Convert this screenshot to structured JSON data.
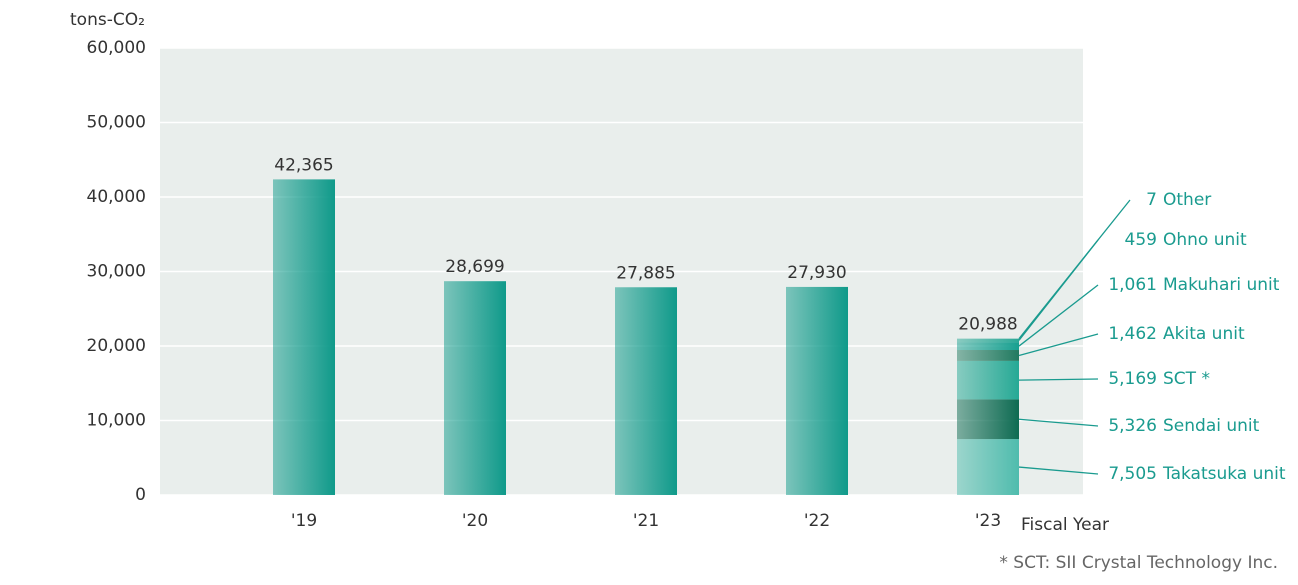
{
  "chart_data": {
    "type": "bar",
    "y_axis_label": "tons-CO₂",
    "x_axis_label": "Fiscal Year",
    "footnote": "* SCT: SII Crystal Technology Inc.",
    "categories": [
      "'19",
      "'20",
      "'21",
      "'22",
      "'23"
    ],
    "values": [
      42365,
      28699,
      27885,
      27930,
      20988
    ],
    "value_labels": [
      "42,365",
      "28,699",
      "27,885",
      "27,930",
      "20,988"
    ],
    "color": "#0f9a8a",
    "series": [
      {
        "name": "Takatsuka unit",
        "color": "#4fbcad",
        "values": [
          null,
          null,
          null,
          null,
          7505
        ],
        "value_labels": [
          null,
          null,
          null,
          null,
          "7,505"
        ]
      },
      {
        "name": "Sendai unit",
        "color": "#0e6b52",
        "values": [
          null,
          null,
          null,
          null,
          5326
        ],
        "value_labels": [
          null,
          null,
          null,
          null,
          "5,326"
        ]
      },
      {
        "name": "SCT *",
        "color": "#26a995",
        "values": [
          null,
          null,
          null,
          null,
          5169
        ],
        "value_labels": [
          null,
          null,
          null,
          null,
          "5,169"
        ]
      },
      {
        "name": "Akita unit",
        "color": "#217a60",
        "values": [
          null,
          null,
          null,
          null,
          1462
        ],
        "value_labels": [
          null,
          null,
          null,
          null,
          "1,462"
        ]
      },
      {
        "name": "Makuhari unit",
        "color": "#18a090",
        "values": [
          null,
          null,
          null,
          null,
          1061
        ],
        "value_labels": [
          null,
          null,
          null,
          null,
          "1,061"
        ]
      },
      {
        "name": "Ohno unit",
        "color": "#2aa896",
        "values": [
          null,
          null,
          null,
          null,
          459
        ],
        "value_labels": [
          null,
          null,
          null,
          null,
          "459"
        ]
      },
      {
        "name": "Other",
        "color": "#149c8c",
        "values": [
          null,
          null,
          null,
          null,
          7
        ],
        "value_labels": [
          null,
          null,
          null,
          null,
          "7"
        ]
      }
    ],
    "label_color": "#1a9b8f",
    "ylim": [
      0,
      60000
    ],
    "yticks": [
      0,
      {
        "value": 10000,
        "label": "10,000"
      },
      {
        "value": 20000,
        "label": "20,000"
      },
      {
        "value": 30000,
        "label": "30,000"
      },
      {
        "value": 40000,
        "label": "40,000"
      },
      {
        "value": 50000,
        "label": "50,000"
      },
      {
        "value": 60000,
        "label": "60,000"
      }
    ],
    "grid": true
  }
}
